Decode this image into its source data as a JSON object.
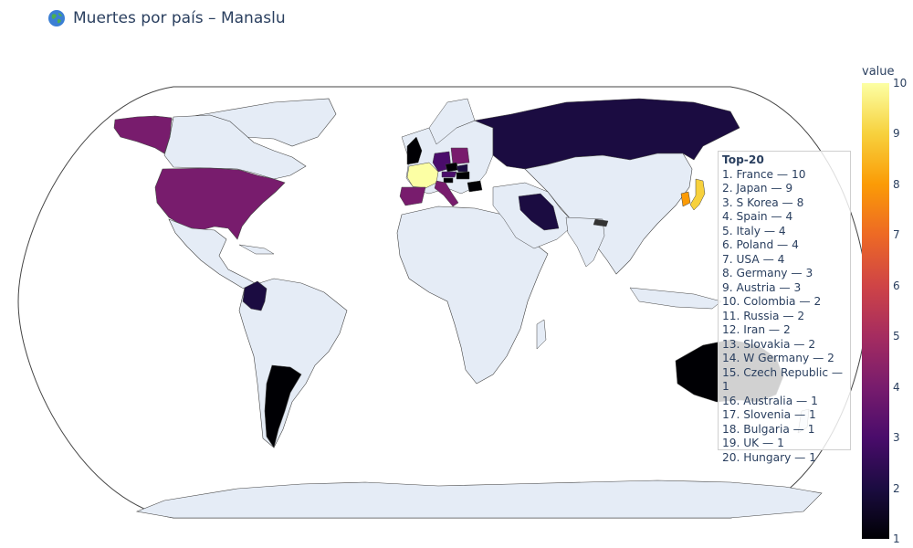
{
  "title": "Muertes por país – Manaslu",
  "colors": {
    "land": "#e5ecf6",
    "coast": "#444444",
    "borders": "#ffffff",
    "scale": [
      "#000004",
      "#1b0c41",
      "#4a0c6b",
      "#781c6d",
      "#a52c60",
      "#cf4446",
      "#ed6925",
      "#fb9b06",
      "#f7d13d",
      "#fcffa4"
    ]
  },
  "top20": {
    "header": "Top-20",
    "items": [
      "1. France — 10",
      "2. Japan — 9",
      "3. S Korea — 8",
      "4. Spain — 4",
      "5. Italy — 4",
      "6. Poland — 4",
      "7. USA — 4",
      "8. Germany — 3",
      "9. Austria — 3",
      "10. Colombia — 2",
      "11. Russia — 2",
      "12. Iran — 2",
      "13. Slovakia — 2",
      "14. W Germany — 2",
      "15. Czech Republic — 1",
      "16. Australia — 1",
      "17. Slovenia — 1",
      "18. Bulgaria — 1",
      "19. UK — 1",
      "20. Hungary — 1"
    ]
  },
  "colorbar": {
    "title": "value",
    "ticks": [
      "10",
      "9",
      "8",
      "7",
      "6",
      "5",
      "4",
      "3",
      "2",
      "1"
    ]
  },
  "chart_data": {
    "type": "choropleth",
    "projection": "natural earth",
    "colorscale": "Inferno",
    "range": [
      1,
      10
    ],
    "countries": [
      {
        "name": "France",
        "value": 10
      },
      {
        "name": "Japan",
        "value": 9
      },
      {
        "name": "S Korea",
        "value": 8
      },
      {
        "name": "Spain",
        "value": 4
      },
      {
        "name": "Italy",
        "value": 4
      },
      {
        "name": "Poland",
        "value": 4
      },
      {
        "name": "USA",
        "value": 4
      },
      {
        "name": "Germany",
        "value": 3
      },
      {
        "name": "Austria",
        "value": 3
      },
      {
        "name": "Colombia",
        "value": 2
      },
      {
        "name": "Russia",
        "value": 2
      },
      {
        "name": "Iran",
        "value": 2
      },
      {
        "name": "Slovakia",
        "value": 2
      },
      {
        "name": "W Germany",
        "value": 2
      },
      {
        "name": "Czech Republic",
        "value": 1
      },
      {
        "name": "Australia",
        "value": 1
      },
      {
        "name": "Slovenia",
        "value": 1
      },
      {
        "name": "Bulgaria",
        "value": 1
      },
      {
        "name": "UK",
        "value": 1
      },
      {
        "name": "Hungary",
        "value": 1
      }
    ]
  }
}
